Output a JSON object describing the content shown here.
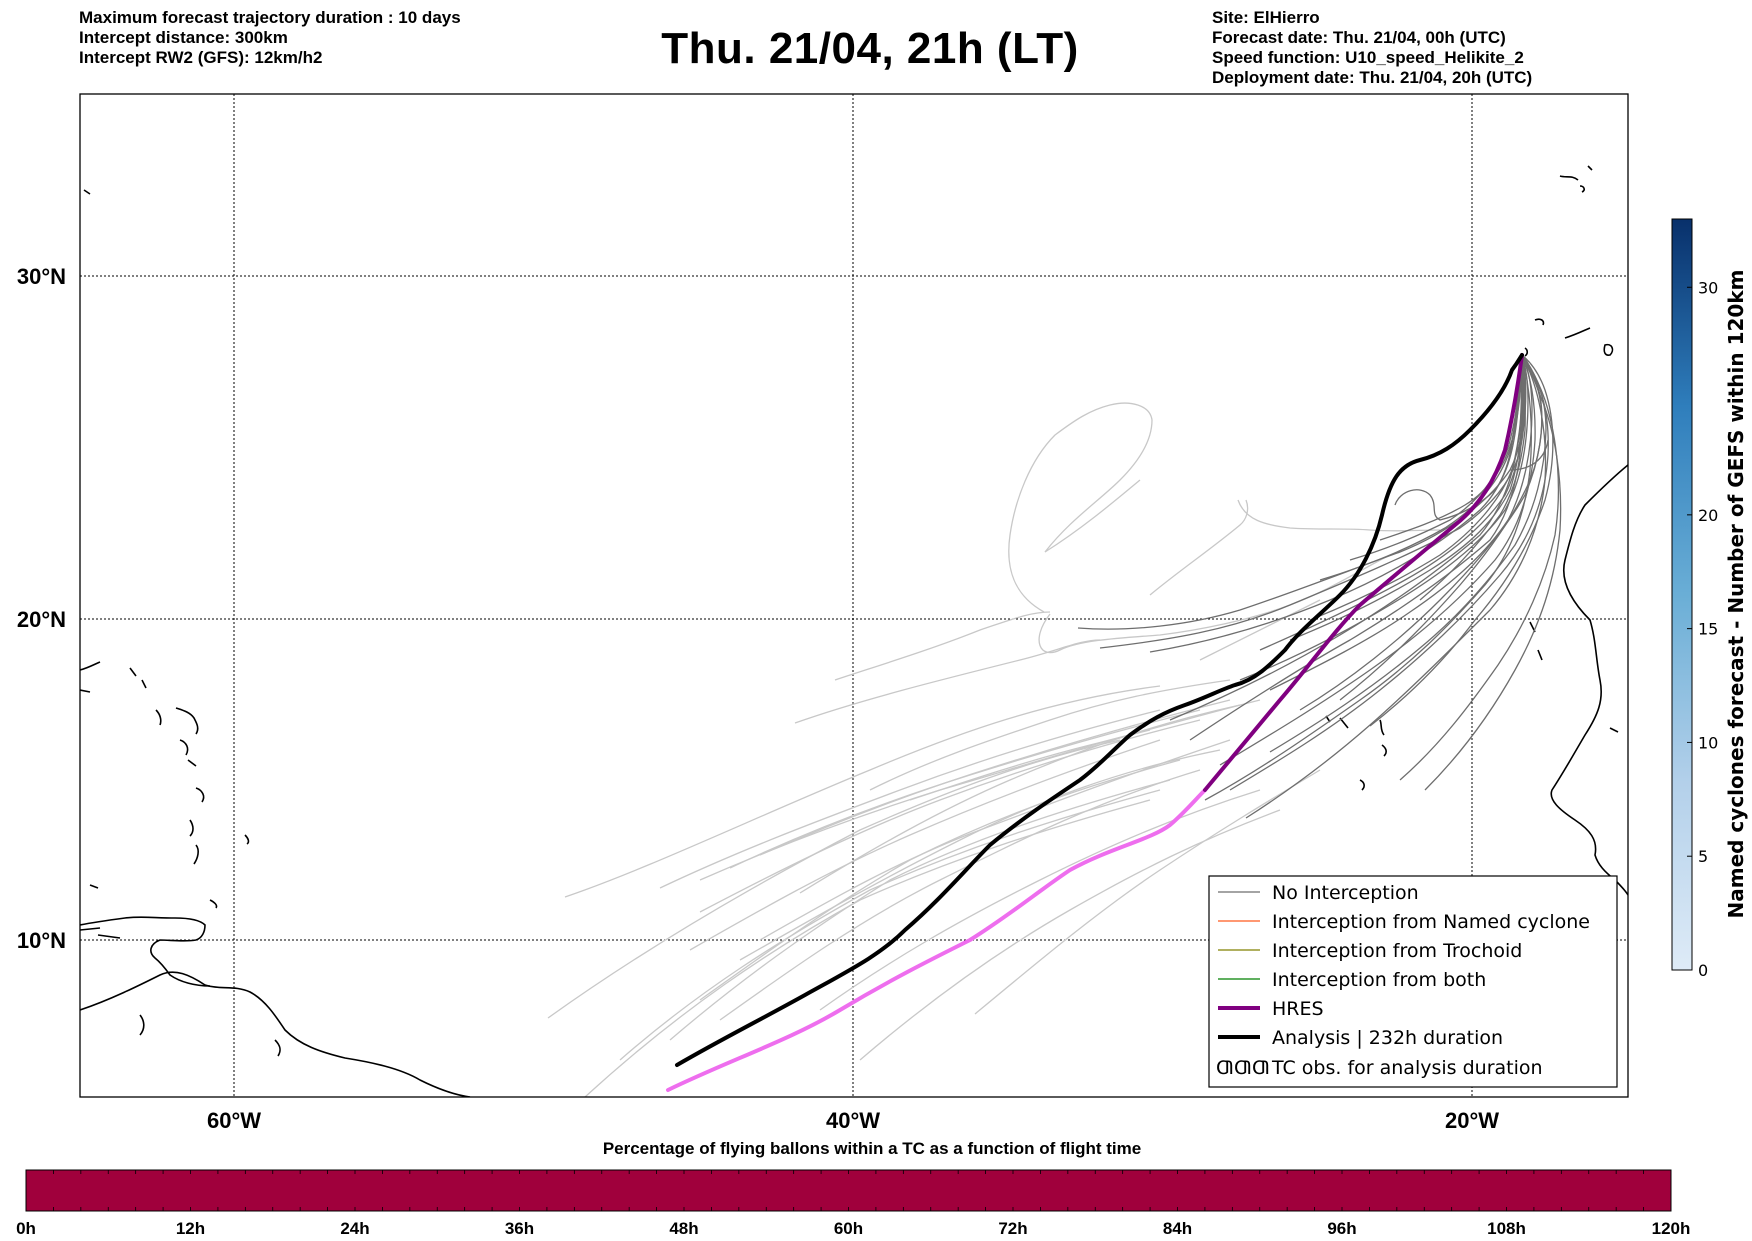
{
  "header": {
    "left_lines": [
      "Maximum forecast trajectory duration : 10 days",
      "Intercept distance: 300km",
      "Intercept RW2 (GFS):  12km/h2"
    ],
    "title": "Thu. 21/04, 21h (LT)",
    "right_lines": [
      "Site: ElHierro",
      "Forecast date: Thu. 21/04, 00h (UTC)",
      "Speed function: U10_speed_Helikite_2",
      "Deployment date: Thu. 21/04, 20h (UTC)"
    ]
  },
  "map": {
    "lat_labels": [
      "30°N",
      "20°N",
      "10°N"
    ],
    "lon_labels": [
      "60°W",
      "40°W",
      "20°W"
    ],
    "colors": {
      "no_interception": "#6e6e6e",
      "ensemble_light": "#c8c8c8",
      "named_cyclone": "#ff5a1f",
      "trochoid": "#808000",
      "both": "#008000",
      "hres": "#800080",
      "hres_light": "#ee6eee",
      "analysis": "#000000"
    }
  },
  "legend": {
    "items": [
      {
        "label": "No Interception",
        "color": "#6e6e6e",
        "width": 1.3
      },
      {
        "label": "Interception from Named cyclone",
        "color": "#ff5a1f",
        "width": 1.3
      },
      {
        "label": "Interception from Trochoid",
        "color": "#808000",
        "width": 1.3
      },
      {
        "label": "Interception from both",
        "color": "#008000",
        "width": 1.3
      },
      {
        "label": "HRES",
        "color": "#800080",
        "width": 4
      },
      {
        "label": "Analysis | 232h duration",
        "color": "#000000",
        "width": 4
      }
    ],
    "tc_symbol": "ƢƢƢ",
    "tc_label": "TC obs. for analysis duration"
  },
  "colorbar": {
    "label": "Named cyclones forecast - Number of GEFS within 120km",
    "ticks": [
      "0",
      "5",
      "10",
      "15",
      "20",
      "30"
    ],
    "tick_values": [
      0,
      5,
      10,
      15,
      20,
      30
    ],
    "max": 33
  },
  "bottom_bar": {
    "title": "Percentage of flying ballons within a TC as a function of flight time",
    "color": "#a0003c",
    "ticks": [
      "0h",
      "12h",
      "24h",
      "36h",
      "48h",
      "60h",
      "72h",
      "84h",
      "96h",
      "108h",
      "120h"
    ]
  }
}
